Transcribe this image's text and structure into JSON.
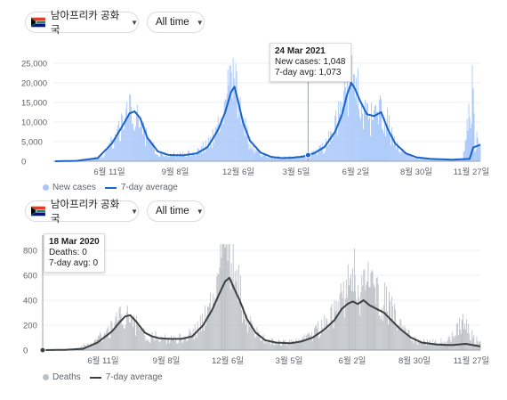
{
  "panel1": {
    "region_selector": {
      "label": "남아프리카 공화국",
      "flag": "south-africa-flag-icon"
    },
    "time_selector": {
      "label": "All time"
    },
    "tooltip": {
      "date": "24 Mar 2021",
      "line1": "New cases: 1,048",
      "line2": "7-day avg: 1,073"
    },
    "legend": {
      "bars": "New cases",
      "line": "7-day average"
    },
    "colors": {
      "bars": "#a8c7fa",
      "line": "#1a63c8",
      "axis": "#9aa0a6"
    }
  },
  "panel2": {
    "region_selector": {
      "label": "남아프리카 공화국",
      "flag": "south-africa-flag-icon"
    },
    "time_selector": {
      "label": "All time"
    },
    "tooltip": {
      "date": "18 Mar 2020",
      "line1": "Deaths: 0",
      "line2": "7-day avg: 0"
    },
    "legend": {
      "bars": "Deaths",
      "line": "7-day average"
    },
    "colors": {
      "bars": "#bdc1c6",
      "line": "#3c4043",
      "axis": "#9aa0a6"
    }
  },
  "chart_data": [
    {
      "type": "bar",
      "x_ticks": [
        "6월 11일",
        "9월 8일",
        "12월 6일",
        "3월 5일",
        "6월 2일",
        "8월 30일",
        "11월 27일"
      ],
      "y_ticks": [
        "0",
        "5,000",
        "10,000",
        "15,000",
        "20,000",
        "25,000"
      ],
      "ylim": [
        0,
        27000
      ],
      "x_range_days": [
        0,
        600
      ],
      "series": [
        {
          "name": "New cases",
          "kind": "bars",
          "points": [
            [
              0,
              0
            ],
            [
              40,
              100
            ],
            [
              70,
              1500
            ],
            [
              90,
              8000
            ],
            [
              105,
              12500
            ],
            [
              112,
              13000
            ],
            [
              120,
              11000
            ],
            [
              130,
              5500
            ],
            [
              145,
              2000
            ],
            [
              160,
              1600
            ],
            [
              180,
              1700
            ],
            [
              200,
              2200
            ],
            [
              220,
              5000
            ],
            [
              235,
              10500
            ],
            [
              245,
              17000
            ],
            [
              250,
              21000
            ],
            [
              255,
              17500
            ],
            [
              262,
              11000
            ],
            [
              275,
              4500
            ],
            [
              290,
              1800
            ],
            [
              305,
              1000
            ],
            [
              320,
              900
            ],
            [
              340,
              1000
            ],
            [
              360,
              1700
            ],
            [
              380,
              3500
            ],
            [
              395,
              9000
            ],
            [
              405,
              14000
            ],
            [
              412,
              18000
            ],
            [
              417,
              24500
            ],
            [
              422,
              20000
            ],
            [
              430,
              16000
            ],
            [
              440,
              12000
            ],
            [
              450,
              11000
            ],
            [
              460,
              13500
            ],
            [
              470,
              9000
            ],
            [
              480,
              4000
            ],
            [
              495,
              1800
            ],
            [
              510,
              900
            ],
            [
              530,
              500
            ],
            [
              555,
              300
            ],
            [
              575,
              400
            ],
            [
              590,
              18500
            ],
            [
              592,
              4000
            ],
            [
              596,
              6000
            ],
            [
              600,
              3500
            ]
          ]
        },
        {
          "name": "7-day average",
          "kind": "line",
          "points": [
            [
              0,
              0
            ],
            [
              30,
              100
            ],
            [
              60,
              800
            ],
            [
              80,
              4500
            ],
            [
              95,
              9000
            ],
            [
              105,
              12200
            ],
            [
              112,
              12700
            ],
            [
              120,
              11000
            ],
            [
              130,
              6000
            ],
            [
              145,
              2500
            ],
            [
              160,
              1600
            ],
            [
              180,
              1500
            ],
            [
              200,
              2000
            ],
            [
              215,
              3600
            ],
            [
              230,
              8000
            ],
            [
              240,
              12500
            ],
            [
              248,
              17500
            ],
            [
              253,
              19000
            ],
            [
              258,
              15500
            ],
            [
              265,
              10000
            ],
            [
              275,
              5200
            ],
            [
              290,
              2200
            ],
            [
              305,
              1100
            ],
            [
              320,
              800
            ],
            [
              335,
              900
            ],
            [
              350,
              1200
            ],
            [
              365,
              2000
            ],
            [
              380,
              3600
            ],
            [
              395,
              7500
            ],
            [
              405,
              12000
            ],
            [
              412,
              17000
            ],
            [
              418,
              20000
            ],
            [
              423,
              18500
            ],
            [
              430,
              15500
            ],
            [
              440,
              12000
            ],
            [
              450,
              11500
            ],
            [
              460,
              12500
            ],
            [
              470,
              8000
            ],
            [
              480,
              4500
            ],
            [
              495,
              2000
            ],
            [
              510,
              1000
            ],
            [
              530,
              600
            ],
            [
              560,
              400
            ],
            [
              585,
              600
            ],
            [
              590,
              3500
            ],
            [
              600,
              4200
            ]
          ]
        }
      ]
    },
    {
      "type": "bar",
      "x_ticks": [
        "6월 11일",
        "9월 8일",
        "12월 6일",
        "3월 5일",
        "6월 2일",
        "8월 30일",
        "11월 27일"
      ],
      "y_ticks": [
        "0",
        "200",
        "400",
        "600",
        "800"
      ],
      "ylim": [
        0,
        850
      ],
      "x_range_days": [
        0,
        600
      ],
      "series": [
        {
          "name": "Deaths",
          "kind": "bars",
          "points": [
            [
              0,
              0
            ],
            [
              40,
              5
            ],
            [
              70,
              60
            ],
            [
              90,
              150
            ],
            [
              100,
              220
            ],
            [
              110,
              280
            ],
            [
              118,
              300
            ],
            [
              126,
              220
            ],
            [
              135,
              150
            ],
            [
              145,
              100
            ],
            [
              155,
              110
            ],
            [
              165,
              90
            ],
            [
              180,
              80
            ],
            [
              195,
              100
            ],
            [
              210,
              150
            ],
            [
              225,
              280
            ],
            [
              235,
              420
            ],
            [
              245,
              650
            ],
            [
              250,
              820
            ],
            [
              255,
              720
            ],
            [
              262,
              600
            ],
            [
              270,
              450
            ],
            [
              280,
              250
            ],
            [
              295,
              120
            ],
            [
              310,
              70
            ],
            [
              325,
              60
            ],
            [
              340,
              60
            ],
            [
              355,
              80
            ],
            [
              370,
              120
            ],
            [
              385,
              200
            ],
            [
              400,
              300
            ],
            [
              410,
              420
            ],
            [
              420,
              520
            ],
            [
              428,
              600
            ],
            [
              435,
              480
            ],
            [
              445,
              550
            ],
            [
              455,
              500
            ],
            [
              465,
              400
            ],
            [
              475,
              350
            ],
            [
              485,
              250
            ],
            [
              495,
              150
            ],
            [
              510,
              80
            ],
            [
              530,
              60
            ],
            [
              555,
              70
            ],
            [
              575,
              240
            ],
            [
              590,
              100
            ],
            [
              600,
              60
            ]
          ]
        },
        {
          "name": "7-day average",
          "kind": "line",
          "points": [
            [
              0,
              0
            ],
            [
              30,
              2
            ],
            [
              55,
              10
            ],
            [
              75,
              60
            ],
            [
              95,
              150
            ],
            [
              105,
              220
            ],
            [
              113,
              270
            ],
            [
              120,
              280
            ],
            [
              128,
              230
            ],
            [
              140,
              140
            ],
            [
              150,
              110
            ],
            [
              160,
              95
            ],
            [
              175,
              90
            ],
            [
              190,
              90
            ],
            [
              205,
              110
            ],
            [
              220,
              200
            ],
            [
              232,
              320
            ],
            [
              242,
              450
            ],
            [
              250,
              550
            ],
            [
              256,
              580
            ],
            [
              262,
              500
            ],
            [
              270,
              400
            ],
            [
              280,
              250
            ],
            [
              292,
              140
            ],
            [
              305,
              80
            ],
            [
              320,
              60
            ],
            [
              340,
              55
            ],
            [
              355,
              70
            ],
            [
              370,
              100
            ],
            [
              385,
              160
            ],
            [
              400,
              240
            ],
            [
              410,
              330
            ],
            [
              418,
              370
            ],
            [
              425,
              390
            ],
            [
              432,
              370
            ],
            [
              440,
              400
            ],
            [
              448,
              360
            ],
            [
              458,
              330
            ],
            [
              468,
              300
            ],
            [
              478,
              240
            ],
            [
              490,
              170
            ],
            [
              505,
              100
            ],
            [
              520,
              60
            ],
            [
              540,
              45
            ],
            [
              560,
              40
            ],
            [
              580,
              50
            ],
            [
              600,
              30
            ]
          ]
        }
      ]
    }
  ]
}
